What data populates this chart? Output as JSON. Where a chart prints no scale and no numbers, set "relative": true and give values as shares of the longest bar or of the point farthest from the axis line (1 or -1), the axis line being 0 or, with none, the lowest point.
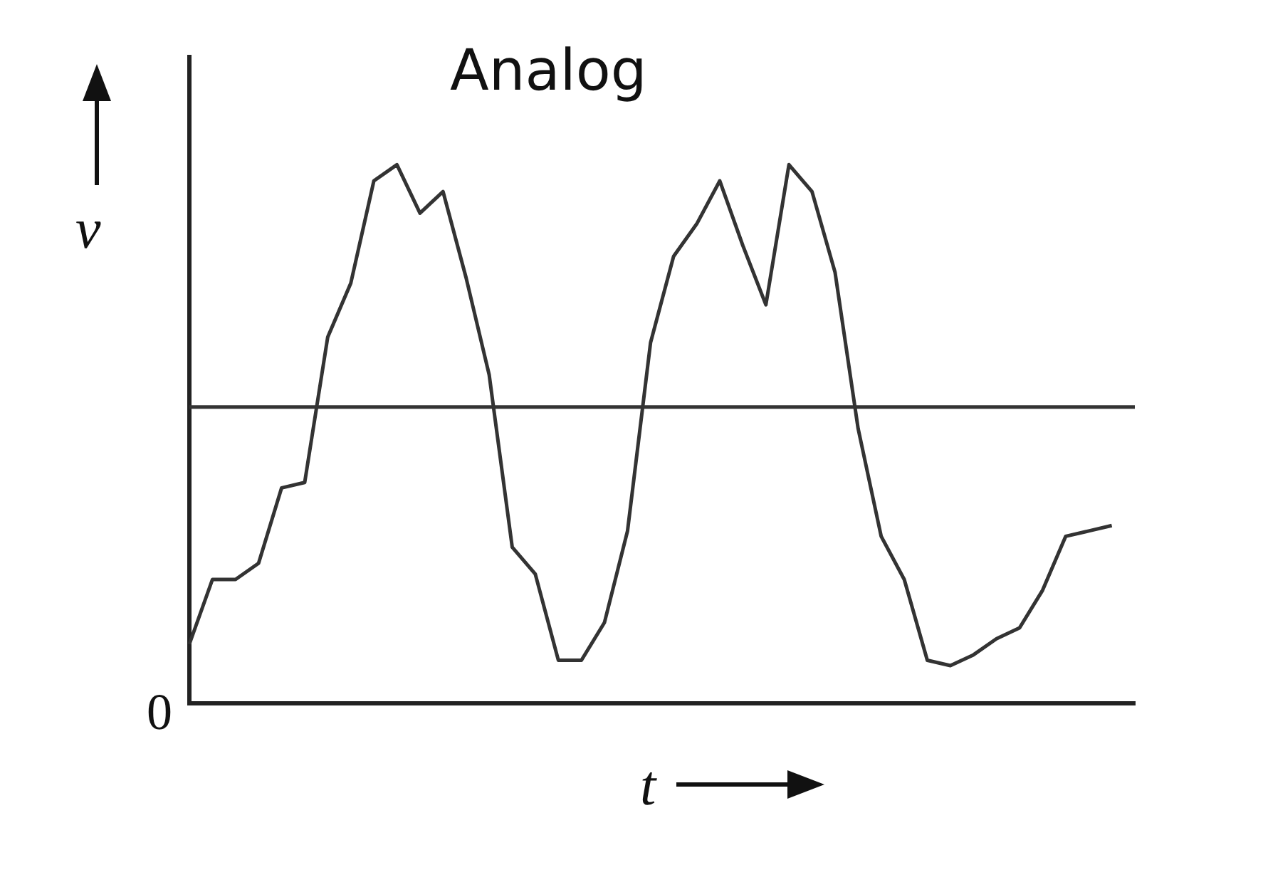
{
  "chart_data": {
    "type": "line",
    "title": "Analog",
    "xlabel": "t",
    "ylabel": "v",
    "relative": true,
    "annotations": [
      "0"
    ],
    "categories": [
      null,
      null,
      null,
      null,
      null,
      null,
      null,
      null,
      null,
      null,
      null,
      null,
      null,
      null,
      null,
      null,
      null,
      null,
      null,
      null,
      null,
      null,
      null,
      null,
      null,
      null,
      null,
      null,
      null,
      null,
      null,
      null,
      null,
      null,
      null,
      null,
      null,
      null,
      null,
      null,
      null,
      null
    ],
    "series": [
      {
        "color": "#333333",
        "values": [
          0.11,
          0.23,
          0.23,
          0.26,
          0.4,
          0.41,
          0.68,
          0.78,
          0.97,
          1.0,
          0.91,
          0.95,
          0.79,
          0.61,
          0.29,
          0.24,
          0.08,
          0.08,
          0.15,
          0.32,
          0.67,
          0.83,
          0.89,
          0.97,
          0.85,
          0.74,
          1.0,
          0.95,
          0.8,
          0.51,
          0.31,
          0.23,
          0.08,
          0.07,
          0.09,
          0.12,
          0.14,
          0.21,
          0.31,
          0.32,
          0.33,
          null
        ]
      }
    ],
    "ref_lines": [
      {
        "axis": "y",
        "value": 0.55,
        "color": "#333333"
      }
    ],
    "grid": false,
    "legend": false,
    "marker": "none",
    "line_style": "solid"
  }
}
